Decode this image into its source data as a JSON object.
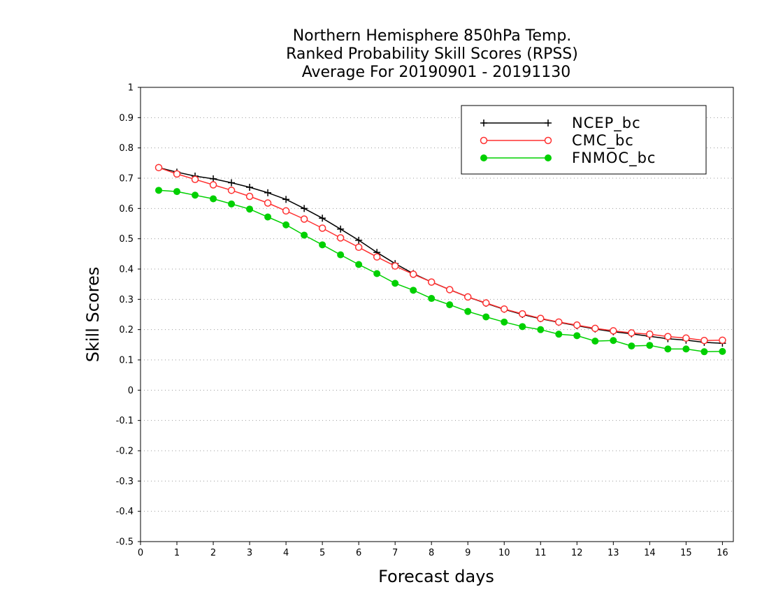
{
  "chart_data": {
    "type": "line",
    "title_lines": [
      "Northern Hemisphere 850hPa Temp.",
      "Ranked Probability Skill Scores (RPSS)",
      "Average For 20190901 - 20191130"
    ],
    "xlabel": "Forecast days",
    "ylabel": "Skill Scores",
    "xlim": [
      0,
      16.3
    ],
    "ylim": [
      -0.5,
      1
    ],
    "xticks": [
      "0",
      "1",
      "2",
      "3",
      "4",
      "5",
      "6",
      "7",
      "8",
      "9",
      "10",
      "11",
      "12",
      "13",
      "14",
      "15",
      "16"
    ],
    "yticks": [
      "1",
      "0.9",
      "0.8",
      "0.7",
      "0.6",
      "0.5",
      "0.4",
      "0.3",
      "0.2",
      "0.1",
      "0",
      "-0.1",
      "-0.2",
      "-0.3",
      "-0.4",
      "-0.5"
    ],
    "grid": "horizontal dotted",
    "legend_position": "top-right",
    "x": [
      0.5,
      1,
      1.5,
      2,
      2.5,
      3,
      3.5,
      4,
      4.5,
      5,
      5.5,
      6,
      6.5,
      7,
      7.5,
      8,
      8.5,
      9,
      9.5,
      10,
      10.5,
      11,
      11.5,
      12,
      12.5,
      13,
      13.5,
      14,
      14.5,
      15,
      15.5,
      16
    ],
    "series": [
      {
        "name": "NCEP_bc",
        "color": "#000000",
        "marker": "plus",
        "values": [
          0.735,
          0.72,
          0.707,
          0.698,
          0.685,
          0.67,
          0.652,
          0.63,
          0.6,
          0.568,
          0.532,
          0.495,
          0.455,
          0.418,
          0.385,
          0.357,
          0.332,
          0.308,
          0.287,
          0.267,
          0.25,
          0.236,
          0.224,
          0.213,
          0.202,
          0.193,
          0.186,
          0.178,
          0.17,
          0.165,
          0.158,
          0.155
        ]
      },
      {
        "name": "CMC_bc",
        "color": "#ff3030",
        "marker": "open-circle",
        "values": [
          0.735,
          0.714,
          0.696,
          0.678,
          0.66,
          0.64,
          0.618,
          0.592,
          0.565,
          0.535,
          0.503,
          0.472,
          0.44,
          0.41,
          0.383,
          0.357,
          0.332,
          0.308,
          0.288,
          0.268,
          0.252,
          0.237,
          0.225,
          0.215,
          0.204,
          0.196,
          0.189,
          0.185,
          0.177,
          0.172,
          0.164,
          0.165
        ]
      },
      {
        "name": "FNMOC_bc",
        "color": "#00d000",
        "marker": "filled-circle",
        "values": [
          0.66,
          0.656,
          0.644,
          0.632,
          0.615,
          0.598,
          0.572,
          0.546,
          0.512,
          0.48,
          0.447,
          0.415,
          0.385,
          0.353,
          0.33,
          0.303,
          0.282,
          0.26,
          0.242,
          0.225,
          0.21,
          0.2,
          0.185,
          0.18,
          0.162,
          0.164,
          0.146,
          0.148,
          0.136,
          0.136,
          0.127,
          0.128
        ]
      }
    ]
  }
}
